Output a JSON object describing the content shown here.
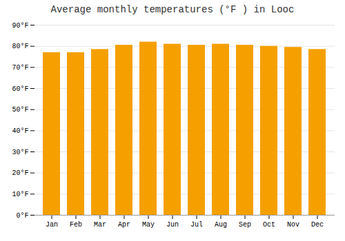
{
  "chart_data": {
    "type": "bar",
    "title": "Average monthly temperatures (°F ) in Looc",
    "categories": [
      "Jan",
      "Feb",
      "Mar",
      "Apr",
      "May",
      "Jun",
      "Jul",
      "Aug",
      "Sep",
      "Oct",
      "Nov",
      "Dec"
    ],
    "values": [
      77.0,
      77.0,
      78.5,
      80.5,
      82.0,
      81.0,
      80.5,
      81.0,
      80.5,
      80.0,
      79.5,
      78.5
    ],
    "color": "#F5A000",
    "ylim": [
      0,
      90
    ],
    "yticks": [
      {
        "value": 0,
        "label": "0°F"
      },
      {
        "value": 10,
        "label": "10°F"
      },
      {
        "value": 20,
        "label": "20°F"
      },
      {
        "value": 30,
        "label": "30°F"
      },
      {
        "value": 40,
        "label": "40°F"
      },
      {
        "value": 50,
        "label": "50°F"
      },
      {
        "value": 60,
        "label": "60°F"
      },
      {
        "value": 70,
        "label": "70°F"
      },
      {
        "value": 80,
        "label": "80°F"
      },
      {
        "value": 90,
        "label": "90°F"
      }
    ],
    "grid": true
  }
}
